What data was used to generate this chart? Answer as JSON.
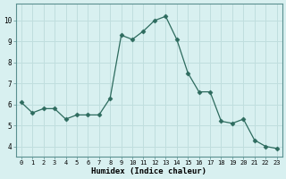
{
  "x": [
    0,
    1,
    2,
    3,
    4,
    5,
    6,
    7,
    8,
    9,
    10,
    11,
    12,
    13,
    14,
    15,
    16,
    17,
    18,
    19,
    20,
    21,
    22,
    23
  ],
  "y": [
    6.1,
    5.6,
    5.8,
    5.8,
    5.3,
    5.5,
    5.5,
    5.5,
    6.3,
    9.3,
    9.1,
    9.5,
    10.0,
    10.2,
    9.1,
    7.5,
    6.6,
    6.6,
    5.2,
    5.1,
    5.3,
    4.3,
    4.0,
    3.9
  ],
  "xlabel": "Humidex (Indice chaleur)",
  "ylabel": "",
  "line_color": "#2d6b5e",
  "marker": "D",
  "marker_size": 2.5,
  "background_color": "#d8f0f0",
  "grid_color": "#c0dede",
  "xlim": [
    -0.5,
    23.5
  ],
  "ylim": [
    3.5,
    10.8
  ],
  "yticks": [
    4,
    5,
    6,
    7,
    8,
    9,
    10
  ],
  "xticks": [
    0,
    1,
    2,
    3,
    4,
    5,
    6,
    7,
    8,
    9,
    10,
    11,
    12,
    13,
    14,
    15,
    16,
    17,
    18,
    19,
    20,
    21,
    22,
    23
  ]
}
